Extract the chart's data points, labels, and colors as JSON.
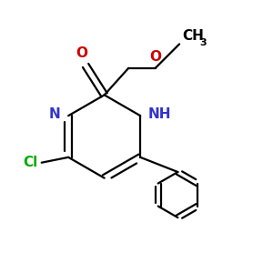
{
  "background_color": "#ffffff",
  "figsize": [
    3.0,
    3.0
  ],
  "dpi": 100,
  "colors": {
    "N": "#3333cc",
    "O": "#cc0000",
    "Cl": "#00aa00",
    "C": "#000000"
  },
  "bond_lw": 1.6,
  "double_sep": 0.018,
  "label_fontsize": 11,
  "label_small_fontsize": 8
}
